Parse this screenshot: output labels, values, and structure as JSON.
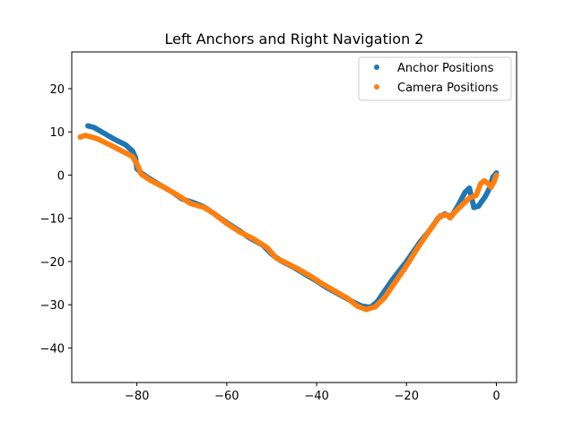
{
  "chart_data": {
    "type": "scatter",
    "title": "Left Anchors and Right Navigation 2",
    "xlabel": "",
    "ylabel": "",
    "xlim": [
      -94.5,
      4.5
    ],
    "ylim": [
      -48,
      28.5
    ],
    "xticks": [
      -80,
      -60,
      -40,
      -20,
      0
    ],
    "yticks": [
      20,
      10,
      0,
      -10,
      -20,
      -30,
      -40
    ],
    "xtick_labels": [
      "−80",
      "−60",
      "−40",
      "−20",
      "0"
    ],
    "ytick_labels": [
      "20",
      "10",
      "0",
      "−10",
      "−20",
      "−30",
      "−40"
    ],
    "grid": false,
    "legend_position": "top-right",
    "series": [
      {
        "name": "Anchor Positions",
        "color": "#1f77b4",
        "points": [
          [
            -90.9,
            11.4
          ],
          [
            -89.5,
            11.0
          ],
          [
            -87.5,
            9.8
          ],
          [
            -85,
            8.3
          ],
          [
            -82.5,
            7.0
          ],
          [
            -81,
            5.6
          ],
          [
            -80.3,
            4.0
          ],
          [
            -80,
            1.5
          ],
          [
            -79,
            0.5
          ],
          [
            -77.5,
            -0.6
          ],
          [
            -75,
            -2.2
          ],
          [
            -72,
            -4.0
          ],
          [
            -70,
            -5.5
          ],
          [
            -67,
            -6.5
          ],
          [
            -65,
            -7.4
          ],
          [
            -63,
            -8.8
          ],
          [
            -60,
            -11
          ],
          [
            -57,
            -13
          ],
          [
            -55,
            -14.5
          ],
          [
            -52,
            -16.2
          ],
          [
            -50,
            -18.3
          ],
          [
            -48,
            -19.8
          ],
          [
            -45,
            -21.4
          ],
          [
            -42,
            -23.3
          ],
          [
            -40,
            -24.5
          ],
          [
            -38,
            -25.9
          ],
          [
            -35,
            -27.6
          ],
          [
            -32,
            -29.3
          ],
          [
            -30,
            -30.3
          ],
          [
            -28,
            -30.6
          ],
          [
            -26.5,
            -29.3
          ],
          [
            -25,
            -27
          ],
          [
            -23,
            -24
          ],
          [
            -20,
            -20
          ],
          [
            -17,
            -15.5
          ],
          [
            -15,
            -13
          ],
          [
            -13,
            -10
          ],
          [
            -11.5,
            -9.0
          ],
          [
            -10,
            -9.6
          ],
          [
            -8.5,
            -7
          ],
          [
            -7,
            -4
          ],
          [
            -6,
            -3
          ],
          [
            -5,
            -7.5
          ],
          [
            -4,
            -7.2
          ],
          [
            -2.5,
            -5
          ],
          [
            -1.5,
            -3
          ],
          [
            -0.8,
            -0.5
          ],
          [
            0,
            0.5
          ]
        ]
      },
      {
        "name": "Camera Positions",
        "color": "#ff7f0e",
        "points": [
          [
            -92.6,
            8.8
          ],
          [
            -91.5,
            9.2
          ],
          [
            -89,
            8.5
          ],
          [
            -86,
            7.0
          ],
          [
            -83,
            5.4
          ],
          [
            -81,
            4.3
          ],
          [
            -80,
            2.6
          ],
          [
            -79,
            0.2
          ],
          [
            -77,
            -1.2
          ],
          [
            -74,
            -2.8
          ],
          [
            -71,
            -4.6
          ],
          [
            -68,
            -6.6
          ],
          [
            -65,
            -7.5
          ],
          [
            -63,
            -8.8
          ],
          [
            -60,
            -11.2
          ],
          [
            -57,
            -13.2
          ],
          [
            -54,
            -14.8
          ],
          [
            -51,
            -16.8
          ],
          [
            -49,
            -19.2
          ],
          [
            -47,
            -20.2
          ],
          [
            -44,
            -21.8
          ],
          [
            -41,
            -23.6
          ],
          [
            -39,
            -25
          ],
          [
            -36,
            -26.8
          ],
          [
            -33,
            -28.6
          ],
          [
            -31,
            -30.3
          ],
          [
            -29,
            -31.1
          ],
          [
            -27,
            -30.5
          ],
          [
            -25,
            -28.5
          ],
          [
            -23,
            -25.5
          ],
          [
            -20,
            -21
          ],
          [
            -17.5,
            -16.8
          ],
          [
            -15,
            -13
          ],
          [
            -12.5,
            -9.4
          ],
          [
            -11,
            -9.2
          ],
          [
            -10.3,
            -9.9
          ],
          [
            -9,
            -8.3
          ],
          [
            -6,
            -5.3
          ],
          [
            -4.5,
            -4.7
          ],
          [
            -3.5,
            -2
          ],
          [
            -2.7,
            -1.3
          ],
          [
            -2,
            -1.8
          ],
          [
            -1.2,
            -2.8
          ],
          [
            -0.5,
            -1.5
          ],
          [
            0,
            0
          ]
        ]
      }
    ]
  }
}
